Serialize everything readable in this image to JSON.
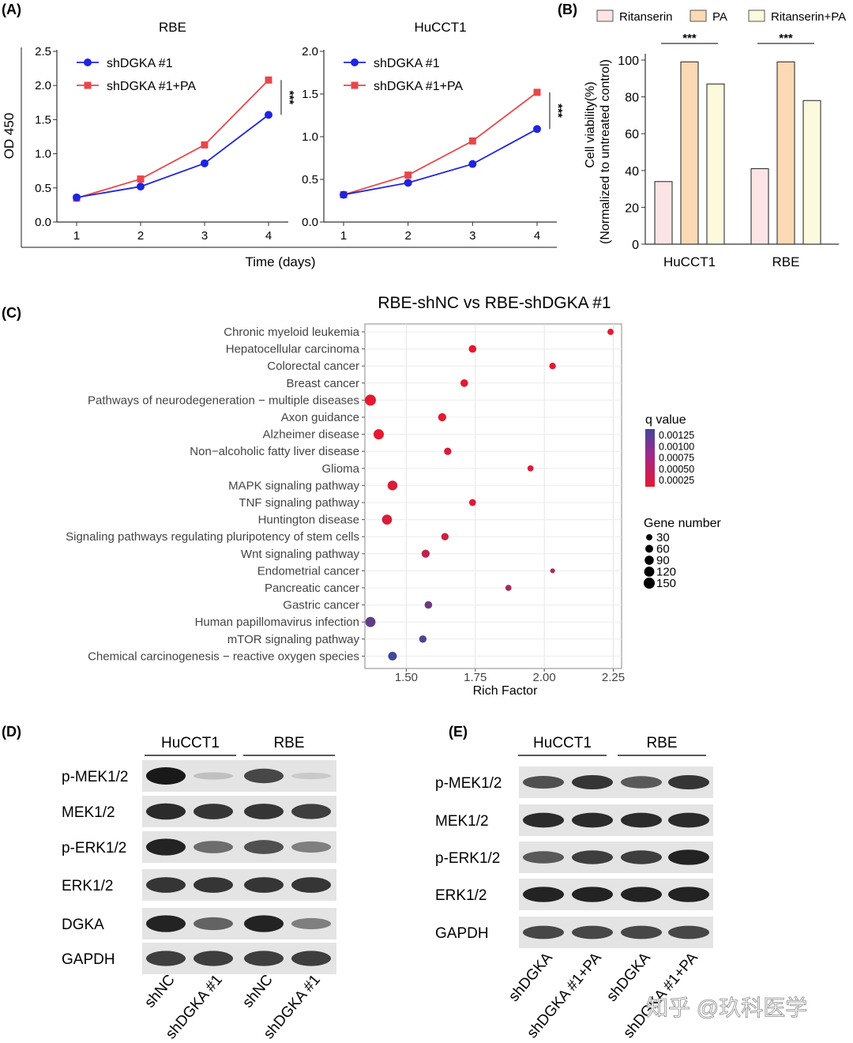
{
  "panel_labels": {
    "a": "(A)",
    "b": "(B)",
    "c": "(C)",
    "d": "(D)",
    "e": "(E)"
  },
  "chart_data": [
    {
      "id": "A-RBE",
      "type": "line",
      "title": "RBE",
      "xlabel": "Time (days)",
      "ylabel": "OD 450",
      "x": [
        1,
        2,
        3,
        4
      ],
      "x_ticks": [
        "1",
        "2",
        "3",
        "4"
      ],
      "ylim": [
        0,
        2.5
      ],
      "y_ticks": [
        "0.0",
        "0.5",
        "1.0",
        "1.5",
        "2.0",
        "2.5"
      ],
      "series": [
        {
          "name": "shDGKA #1",
          "color": "#1f24e0",
          "marker": "circle",
          "values": [
            0.36,
            0.52,
            0.86,
            1.57
          ]
        },
        {
          "name": "shDGKA #1+PA",
          "color": "#e8474a",
          "marker": "square",
          "values": [
            0.35,
            0.63,
            1.13,
            2.08
          ]
        }
      ],
      "annotation": "***"
    },
    {
      "id": "A-HuCCT1",
      "type": "line",
      "title": "HuCCT1",
      "xlabel": "Time (days)",
      "ylabel": "OD 450",
      "x": [
        1,
        2,
        3,
        4
      ],
      "x_ticks": [
        "1",
        "2",
        "3",
        "4"
      ],
      "ylim": [
        0,
        2.0
      ],
      "y_ticks": [
        "0.0",
        "0.5",
        "1.0",
        "1.5",
        "2.0"
      ],
      "series": [
        {
          "name": "shDGKA #1",
          "color": "#1f24e0",
          "marker": "circle",
          "values": [
            0.32,
            0.46,
            0.68,
            1.09
          ]
        },
        {
          "name": "shDGKA #1+PA",
          "color": "#e8474a",
          "marker": "square",
          "values": [
            0.32,
            0.55,
            0.95,
            1.52
          ]
        }
      ],
      "annotation": "***"
    },
    {
      "id": "B",
      "type": "bar",
      "xlabel": "",
      "ylabel": "Cell viability(%)",
      "ylabel2": "(Normalized to untreated control)",
      "categories": [
        "HuCCT1",
        "RBE"
      ],
      "ylim": [
        0,
        100
      ],
      "y_ticks": [
        "0",
        "20",
        "40",
        "60",
        "80",
        "100"
      ],
      "series": [
        {
          "name": "Ritanserin",
          "color": "#fce4e4",
          "values": [
            34,
            41
          ]
        },
        {
          "name": "PA",
          "color": "#fcd9b4",
          "values": [
            99,
            99
          ]
        },
        {
          "name": "Ritanserin+PA",
          "color": "#fdf9dc",
          "values": [
            87,
            78
          ]
        }
      ],
      "annotations": [
        "***",
        "***"
      ]
    },
    {
      "id": "C",
      "type": "scatter",
      "title": "RBE-shNC vs RBE-shDGKA #1",
      "xlabel": "Rich Factor",
      "xlim": [
        1.35,
        2.28
      ],
      "x_ticks": [
        "1.50",
        "1.75",
        "2.00",
        "2.25"
      ],
      "terms": [
        {
          "term": "Chronic myeloid leukemia",
          "rich": 2.24,
          "q": 0.0001,
          "genes": 30
        },
        {
          "term": "Hepatocellular carcinoma",
          "rich": 1.74,
          "q": 0.0001,
          "genes": 55
        },
        {
          "term": "Colorectal cancer",
          "rich": 2.03,
          "q": 0.0001,
          "genes": 35
        },
        {
          "term": "Breast cancer",
          "rich": 1.71,
          "q": 0.0001,
          "genes": 55
        },
        {
          "term": "Pathways of neurodegeneration − multiple diseases",
          "rich": 1.37,
          "q": 0.0001,
          "genes": 150
        },
        {
          "term": "Axon guidance",
          "rich": 1.63,
          "q": 0.0001,
          "genes": 65
        },
        {
          "term": "Alzheimer disease",
          "rich": 1.4,
          "q": 0.0001,
          "genes": 125
        },
        {
          "term": "Non−alcoholic fatty liver disease",
          "rich": 1.65,
          "q": 0.0002,
          "genes": 50
        },
        {
          "term": "Glioma",
          "rich": 1.95,
          "q": 0.0002,
          "genes": 28
        },
        {
          "term": "MAPK signaling pathway",
          "rich": 1.45,
          "q": 0.0002,
          "genes": 110
        },
        {
          "term": "TNF signaling pathway",
          "rich": 1.74,
          "q": 0.0002,
          "genes": 40
        },
        {
          "term": "Huntington disease",
          "rich": 1.43,
          "q": 0.0002,
          "genes": 115
        },
        {
          "term": "Signaling pathways regulating pluripotency of stem cells",
          "rich": 1.64,
          "q": 0.0003,
          "genes": 50
        },
        {
          "term": "Wnt signaling pathway",
          "rich": 1.57,
          "q": 0.0004,
          "genes": 65
        },
        {
          "term": "Endometrial cancer",
          "rich": 2.03,
          "q": 0.0005,
          "genes": 12
        },
        {
          "term": "Pancreatic cancer",
          "rich": 1.87,
          "q": 0.0006,
          "genes": 28
        },
        {
          "term": "Gastric cancer",
          "rich": 1.58,
          "q": 0.001,
          "genes": 55
        },
        {
          "term": "Human papillomavirus infection",
          "rich": 1.37,
          "q": 0.0011,
          "genes": 120
        },
        {
          "term": "mTOR signaling pathway",
          "rich": 1.56,
          "q": 0.0012,
          "genes": 50
        },
        {
          "term": "Chemical carcinogenesis − reactive oxygen species",
          "rich": 1.45,
          "q": 0.00135,
          "genes": 80
        }
      ],
      "q_legend": {
        "title": "q value",
        "labels": [
          "0.00125",
          "0.00100",
          "0.00075",
          "0.00050",
          "0.00025"
        ]
      },
      "size_legend": {
        "title": "Gene number",
        "labels": [
          "30",
          "60",
          "90",
          "120",
          "150"
        ],
        "values": [
          30,
          60,
          90,
          120,
          150
        ]
      }
    }
  ],
  "blot_d": {
    "groups": [
      "HuCCT1",
      "RBE"
    ],
    "rows": [
      "p-MEK1/2",
      "MEK1/2",
      "p-ERK1/2",
      "ERK1/2",
      "DGKA",
      "GAPDH"
    ],
    "lanes": [
      "shNC",
      "shDGKA #1",
      "shNC",
      "shDGKA #1"
    ],
    "intensity": [
      [
        1.0,
        0.1,
        0.75,
        0.05
      ],
      [
        0.9,
        0.85,
        0.85,
        0.8
      ],
      [
        0.95,
        0.55,
        0.7,
        0.45
      ],
      [
        0.85,
        0.85,
        0.85,
        0.85
      ],
      [
        0.95,
        0.6,
        0.95,
        0.45
      ],
      [
        0.8,
        0.8,
        0.8,
        0.8
      ]
    ]
  },
  "blot_e": {
    "groups": [
      "HuCCT1",
      "RBE"
    ],
    "rows": [
      "p-MEK1/2",
      "MEK1/2",
      "p-ERK1/2",
      "ERK1/2",
      "GAPDH"
    ],
    "lanes": [
      "shDGKA",
      "shDGKA #1+PA",
      "shDGKA",
      "shDGKA #1+PA"
    ],
    "intensity": [
      [
        0.7,
        0.85,
        0.65,
        0.85
      ],
      [
        0.9,
        0.9,
        0.9,
        0.9
      ],
      [
        0.65,
        0.8,
        0.8,
        0.95
      ],
      [
        0.95,
        0.95,
        0.95,
        0.95
      ],
      [
        0.75,
        0.75,
        0.75,
        0.75
      ]
    ]
  },
  "watermark": "知乎 @玖科医学"
}
